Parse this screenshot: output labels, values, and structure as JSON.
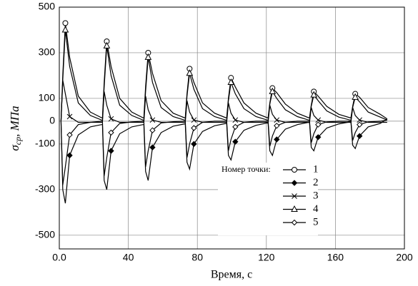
{
  "chart_data": {
    "type": "line",
    "x_label": "Время, с",
    "y_label": {
      "symbol": "σ",
      "subscript": "ср",
      "unit": ", МПа"
    },
    "legend_title": "Номер точки:",
    "xlim": [
      0,
      200
    ],
    "xticks": [
      {
        "value": 0,
        "label": "0.0"
      },
      40,
      80,
      120,
      160,
      200
    ],
    "ylim": [
      -560,
      500
    ],
    "yticks": [
      -500,
      -300,
      -100,
      0,
      100,
      300,
      500
    ],
    "grid": true,
    "x": [
      1,
      2,
      3.5,
      6,
      11,
      18,
      24.5,
      25,
      26,
      27.5,
      30,
      35,
      42,
      48.5,
      49,
      50,
      51.5,
      54,
      59,
      66,
      72.5,
      73,
      74,
      75.5,
      78,
      83,
      90,
      96.5,
      97,
      98,
      99.5,
      102,
      107,
      114,
      120.5,
      121,
      122,
      123.5,
      126,
      131,
      138,
      144.5,
      145,
      146,
      147.5,
      150,
      155,
      162,
      168.5,
      169,
      170,
      171.5,
      174,
      179,
      186,
      190
    ],
    "series": [
      {
        "name": "1",
        "color": "#000000",
        "marker": "circle",
        "values": [
          0,
          200,
          430,
          280,
          110,
          40,
          15,
          15,
          170,
          350,
          240,
          100,
          40,
          15,
          15,
          150,
          300,
          210,
          90,
          35,
          15,
          15,
          120,
          230,
          170,
          80,
          35,
          15,
          15,
          100,
          190,
          150,
          80,
          35,
          15,
          15,
          80,
          145,
          125,
          75,
          35,
          15,
          15,
          70,
          130,
          110,
          65,
          30,
          15,
          15,
          65,
          120,
          105,
          60,
          30,
          10
        ]
      },
      {
        "name": "2",
        "color": "#000000",
        "marker": "diamond-filled",
        "values": [
          0,
          -300,
          -360,
          -150,
          -60,
          -25,
          -15,
          -15,
          -260,
          -300,
          -130,
          -55,
          -25,
          -15,
          -15,
          -220,
          -260,
          -115,
          -50,
          -22,
          -12,
          -12,
          -180,
          -210,
          -100,
          -45,
          -20,
          -10,
          -10,
          -150,
          -170,
          -90,
          -40,
          -18,
          -8,
          -8,
          -130,
          -150,
          -80,
          -35,
          -15,
          -5,
          -5,
          -115,
          -130,
          -70,
          -30,
          -12,
          -3,
          -3,
          -105,
          -120,
          -65,
          -25,
          -10,
          10
        ]
      },
      {
        "name": "3",
        "color": "#000000",
        "marker": "cross",
        "values": [
          0,
          180,
          120,
          20,
          -5,
          -5,
          -5,
          -5,
          130,
          70,
          10,
          -5,
          -5,
          -5,
          -5,
          110,
          50,
          5,
          -5,
          -5,
          -5,
          -5,
          90,
          40,
          5,
          -5,
          -5,
          -5,
          -5,
          80,
          35,
          5,
          -5,
          -5,
          -5,
          -5,
          70,
          30,
          5,
          -5,
          -5,
          -5,
          -5,
          60,
          25,
          5,
          -5,
          -5,
          -5,
          -5,
          60,
          25,
          5,
          -5,
          -5,
          -5
        ]
      },
      {
        "name": "4",
        "color": "#000000",
        "marker": "triangle",
        "values": [
          0,
          180,
          400,
          240,
          80,
          25,
          5,
          5,
          150,
          330,
          200,
          70,
          25,
          5,
          5,
          130,
          280,
          170,
          60,
          20,
          5,
          5,
          110,
          210,
          140,
          55,
          20,
          5,
          5,
          90,
          170,
          120,
          55,
          20,
          5,
          5,
          75,
          130,
          100,
          50,
          20,
          5,
          5,
          65,
          115,
          90,
          45,
          18,
          5,
          5,
          60,
          105,
          85,
          40,
          18,
          5
        ]
      },
      {
        "name": "5",
        "color": "#000000",
        "marker": "diamond",
        "values": [
          0,
          -280,
          -200,
          -60,
          -15,
          -5,
          0,
          0,
          -240,
          -160,
          -50,
          -10,
          -3,
          0,
          0,
          -200,
          -130,
          -40,
          -8,
          -2,
          0,
          0,
          -160,
          -100,
          -30,
          -5,
          0,
          0,
          0,
          -130,
          -80,
          -25,
          -5,
          0,
          0,
          0,
          -110,
          -65,
          -20,
          -5,
          0,
          0,
          0,
          -95,
          -55,
          -15,
          -3,
          0,
          0,
          0,
          -85,
          -50,
          -15,
          -3,
          0,
          5
        ]
      }
    ]
  }
}
